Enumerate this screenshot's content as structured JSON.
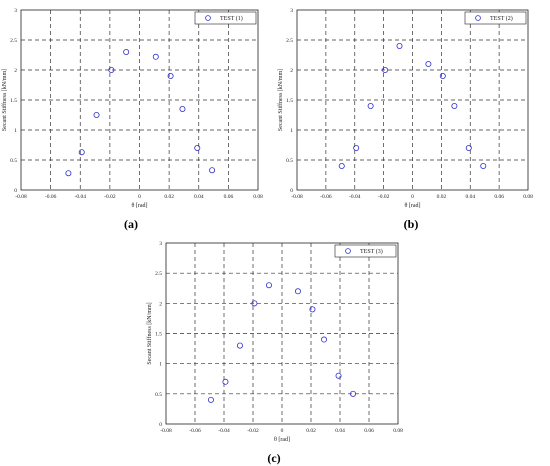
{
  "chart_data": [
    {
      "type": "scatter",
      "caption": "(a)",
      "xlabel": "θ [rad]",
      "ylabel": "Secant Stiffness [kN/mm]",
      "xlim": [
        -0.08,
        0.08
      ],
      "ylim": [
        0,
        3
      ],
      "xticks": [
        "-0.08",
        "-0.06",
        "-0.04",
        "-0.02",
        "0",
        "0.02",
        "0.04",
        "0.06",
        "0.08"
      ],
      "yticks": [
        "0",
        "0.5",
        "1",
        "1.5",
        "2",
        "2.5",
        "3"
      ],
      "grid": true,
      "legend_position": "top-right",
      "marker_color": "#3030d0",
      "series": [
        {
          "name": "TEST (1)",
          "x": [
            -0.048,
            -0.039,
            -0.029,
            -0.019,
            -0.009,
            0.011,
            0.021,
            0.029,
            0.039,
            0.049
          ],
          "y": [
            0.28,
            0.63,
            1.25,
            2.0,
            2.3,
            2.22,
            1.9,
            1.35,
            0.7,
            0.33
          ]
        }
      ]
    },
    {
      "type": "scatter",
      "caption": "(b)",
      "xlabel": "θ [rad]",
      "ylabel": "Secant Stiffness [kN/mm]",
      "xlim": [
        -0.08,
        0.08
      ],
      "ylim": [
        0,
        3
      ],
      "xticks": [
        "-0.08",
        "-0.06",
        "-0.04",
        "-0.02",
        "0",
        "0.02",
        "0.04",
        "0.06",
        "0.08"
      ],
      "yticks": [
        "0",
        "0.5",
        "1",
        "1.5",
        "2",
        "2.5",
        "3"
      ],
      "grid": true,
      "legend_position": "top-right",
      "marker_color": "#3030d0",
      "series": [
        {
          "name": "TEST (2)",
          "x": [
            -0.049,
            -0.039,
            -0.029,
            -0.019,
            -0.009,
            0.011,
            0.021,
            0.029,
            0.039,
            0.049
          ],
          "y": [
            0.4,
            0.7,
            1.4,
            2.0,
            2.4,
            2.1,
            1.9,
            1.4,
            0.7,
            0.4
          ]
        }
      ]
    },
    {
      "type": "scatter",
      "caption": "(c)",
      "xlabel": "θ [rad]",
      "ylabel": "Secant Stiffness [kN/mm]",
      "xlim": [
        -0.08,
        0.08
      ],
      "ylim": [
        0,
        3
      ],
      "xticks": [
        "-0.08",
        "-0.06",
        "-0.04",
        "-0.02",
        "0",
        "0.02",
        "0.04",
        "0.06",
        "0.08"
      ],
      "yticks": [
        "0",
        "0.5",
        "1",
        "1.5",
        "2",
        "2.5",
        "3"
      ],
      "grid": true,
      "legend_position": "top-right",
      "marker_color": "#3030d0",
      "series": [
        {
          "name": "TEST (3)",
          "x": [
            -0.049,
            -0.039,
            -0.029,
            -0.019,
            -0.009,
            0.011,
            0.021,
            0.029,
            0.039,
            0.049
          ],
          "y": [
            0.4,
            0.7,
            1.3,
            2.0,
            2.3,
            2.2,
            1.9,
            1.4,
            0.8,
            0.5
          ]
        }
      ]
    }
  ]
}
